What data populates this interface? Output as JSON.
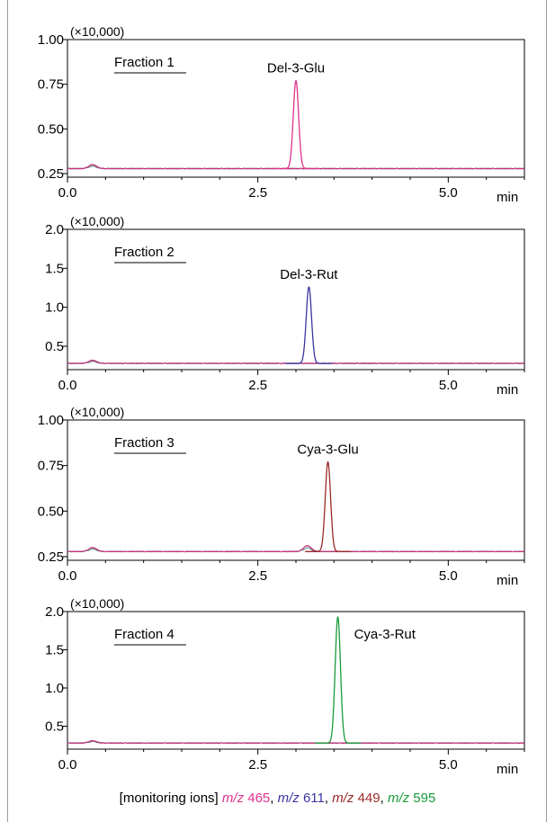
{
  "colors": {
    "mz465": "#e0338f",
    "mz611": "#3a35a0",
    "mz449": "#9b2a2a",
    "mz595": "#1a9a3a",
    "baseline": "#3a7d6e"
  },
  "caption": {
    "prefix": "[monitoring ions]",
    "ions": [
      {
        "mz_label": "m/z",
        "value": "465",
        "sep": ",",
        "color_key": "mz465"
      },
      {
        "mz_label": "m/z",
        "value": "611",
        "sep": ",",
        "color_key": "mz611"
      },
      {
        "mz_label": "m/z",
        "value": "449",
        "sep": ",",
        "color_key": "mz449"
      },
      {
        "mz_label": "m/z",
        "value": "595",
        "sep": "",
        "color_key": "mz595"
      }
    ]
  },
  "chart_data": [
    {
      "type": "line",
      "title": "Fraction 1",
      "y_multiplier": "(×10,000)",
      "xlabel": "min",
      "xlim": [
        0,
        6
      ],
      "ylim": [
        0.23,
        1.0
      ],
      "x_ticks": [
        "0.0",
        "2.5",
        "5.0"
      ],
      "y_ticks": [
        "0.25",
        "0.50",
        "0.75",
        "1.00"
      ],
      "baseline": 0.278,
      "peak": {
        "label": "Del-3-Glu",
        "x": 3.0,
        "y": 0.77,
        "color_key": "mz465"
      },
      "minor": [
        {
          "x": 0.33,
          "y": 0.3
        }
      ]
    },
    {
      "type": "line",
      "title": "Fraction 2",
      "y_multiplier": "(×10,000)",
      "xlabel": "min",
      "xlim": [
        0,
        6
      ],
      "ylim": [
        0.2,
        2.0
      ],
      "x_ticks": [
        "0.0",
        "2.5",
        "5.0"
      ],
      "y_ticks": [
        "0.5",
        "1.0",
        "1.5",
        "2.0"
      ],
      "baseline": 0.28,
      "peak": {
        "label": "Del-3-Rut",
        "x": 3.17,
        "y": 1.26,
        "color_key": "mz611"
      },
      "minor": [
        {
          "x": 0.33,
          "y": 0.32
        }
      ]
    },
    {
      "type": "line",
      "title": "Fraction 3",
      "y_multiplier": "(×10,000)",
      "xlabel": "min",
      "xlim": [
        0,
        6
      ],
      "ylim": [
        0.23,
        1.0
      ],
      "x_ticks": [
        "0.0",
        "2.5",
        "5.0"
      ],
      "y_ticks": [
        "0.25",
        "0.50",
        "0.75",
        "1.00"
      ],
      "baseline": 0.278,
      "peak": {
        "label": "Cya-3-Glu",
        "x": 3.42,
        "y": 0.77,
        "color_key": "mz449"
      },
      "minor": [
        {
          "x": 0.33,
          "y": 0.3
        },
        {
          "x": 3.15,
          "y": 0.31
        }
      ]
    },
    {
      "type": "line",
      "title": "Fraction 4",
      "y_multiplier": "(×10,000)",
      "xlabel": "min",
      "xlim": [
        0,
        6
      ],
      "ylim": [
        0.2,
        2.0
      ],
      "x_ticks": [
        "0.0",
        "2.5",
        "5.0"
      ],
      "y_ticks": [
        "0.5",
        "1.0",
        "1.5",
        "2.0"
      ],
      "baseline": 0.28,
      "peak": {
        "label": "Cya-3-Rut",
        "x": 3.55,
        "y": 1.93,
        "color_key": "mz595"
      },
      "minor": [
        {
          "x": 0.33,
          "y": 0.31
        }
      ]
    }
  ]
}
